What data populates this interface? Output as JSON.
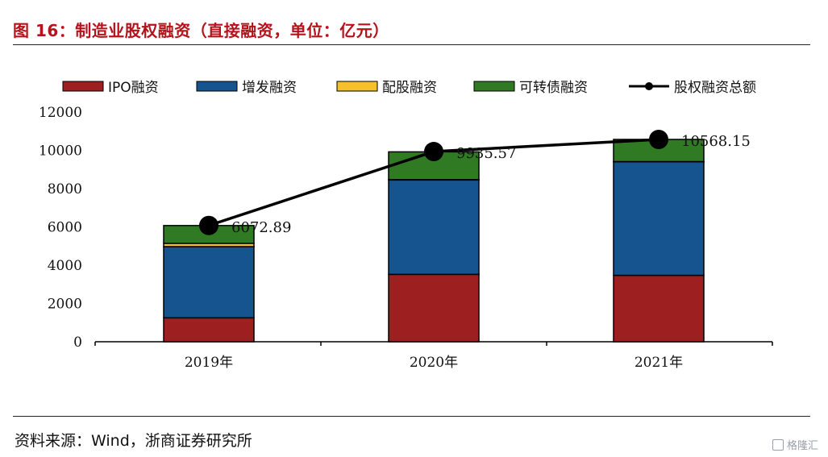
{
  "title": "图 16：制造业股权融资（直接融资，单位：亿元）",
  "source": "资料来源：Wind，浙商证券研究所",
  "watermark": "格隆汇",
  "colors": {
    "title": "#b5121b",
    "ipo": "#9e1f1f",
    "additional": "#15548f",
    "rights": "#f5c02b",
    "convertible": "#2f7a22",
    "total": "#000000"
  },
  "chart_data": {
    "type": "bar",
    "stacked": true,
    "categories": [
      "2019年",
      "2020年",
      "2021年"
    ],
    "series": [
      {
        "name": "IPO融资",
        "values": [
          1250,
          3520,
          3470
        ]
      },
      {
        "name": "增发融资",
        "values": [
          3720,
          4930,
          5930
        ]
      },
      {
        "name": "配股融资",
        "values": [
          170,
          20,
          10
        ]
      },
      {
        "name": "可转债融资",
        "values": [
          930,
          1450,
          1160
        ]
      }
    ],
    "line_series": {
      "name": "股权融资总额",
      "values": [
        6072.89,
        9935.57,
        10568.15
      ]
    },
    "data_labels": [
      "6072.89",
      "9935.57",
      "10568.15"
    ],
    "yticks": [
      "0",
      "2000",
      "4000",
      "6000",
      "8000",
      "10000",
      "12000"
    ],
    "ylim": [
      0,
      12000
    ],
    "legend_position": "top",
    "grid": false
  }
}
